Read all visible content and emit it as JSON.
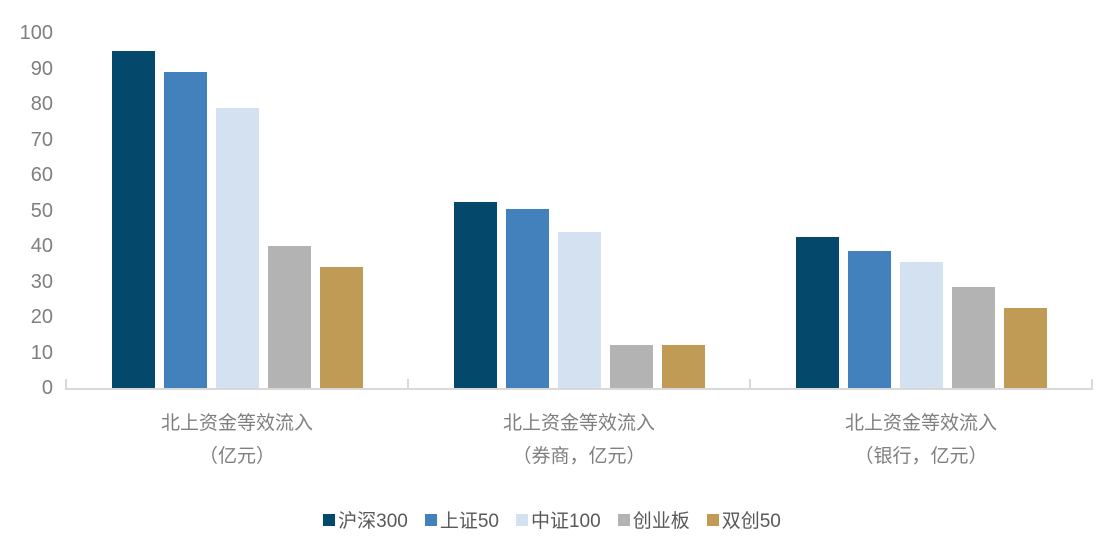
{
  "chart_data": {
    "type": "bar",
    "title": "",
    "xlabel": "",
    "ylabel": "",
    "categories": [
      "北上资金等效流入\n（亿元）",
      "北上资金等效流入\n（券商，亿元）",
      "北上资金等效流入\n（银行，亿元）"
    ],
    "series": [
      {
        "name": "沪深300",
        "color": "#04486C",
        "values": [
          95,
          52.5,
          42.5
        ]
      },
      {
        "name": "上证50",
        "color": "#4381BD",
        "values": [
          89,
          50.5,
          38.5
        ]
      },
      {
        "name": "中证100",
        "color": "#D3E1F1",
        "values": [
          79,
          44,
          35.5
        ]
      },
      {
        "name": "创业板",
        "color": "#B3B3B3",
        "values": [
          40,
          12,
          28.5
        ]
      },
      {
        "name": "双创50",
        "color": "#BF9B55",
        "values": [
          34,
          12,
          22.5
        ]
      }
    ],
    "ylim": [
      0,
      100
    ],
    "yticks": [
      0,
      10,
      20,
      30,
      40,
      50,
      60,
      70,
      80,
      90,
      100
    ],
    "grid": false,
    "legend_position": "bottom"
  },
  "style_colors": {
    "background": "#FFFFFF",
    "axis_line": "#D9D9D9",
    "axis_text": "#7F7F7F",
    "legend_text": "#595959"
  }
}
